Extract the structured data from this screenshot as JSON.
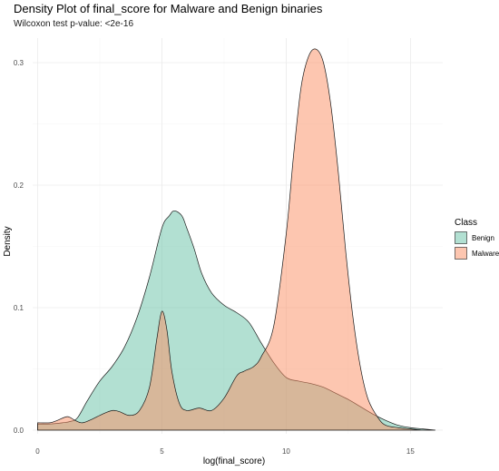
{
  "chart_data": {
    "type": "area",
    "title": "Density Plot of final_score for Malware and Benign binaries",
    "subtitle": "Wilcoxon test p-value: <2e-16",
    "xlabel": "log(final_score)",
    "ylabel": "Density",
    "xlim": [
      -0.2,
      16.3
    ],
    "ylim": [
      -0.003,
      0.32
    ],
    "x_ticks": [
      0,
      5,
      10,
      15
    ],
    "x_tick_labels": [
      "0",
      "5",
      "10",
      "15"
    ],
    "y_ticks": [
      0.0,
      0.1,
      0.2,
      0.3
    ],
    "y_tick_labels": [
      "0.0",
      "0.1",
      "0.2",
      "0.3"
    ],
    "grid": true,
    "legend": {
      "title": "Class",
      "position": "right"
    },
    "series": [
      {
        "name": "Benign",
        "color": "#66C2A5",
        "fill_opacity": 0.5,
        "x": [
          0,
          0.5,
          1.0,
          1.3,
          1.6,
          2.0,
          2.5,
          3.0,
          3.5,
          4.0,
          4.5,
          5.0,
          5.3,
          5.5,
          5.8,
          6.0,
          6.3,
          6.6,
          7.0,
          7.5,
          8.0,
          8.5,
          9.0,
          9.5,
          10.0,
          10.5,
          11.0,
          11.5,
          12.0,
          12.5,
          13.0,
          13.5,
          14.0,
          14.5,
          15.0,
          15.5,
          16.0
        ],
        "y": [
          0.005,
          0.005,
          0.006,
          0.007,
          0.01,
          0.024,
          0.04,
          0.052,
          0.068,
          0.092,
          0.125,
          0.165,
          0.175,
          0.179,
          0.175,
          0.165,
          0.148,
          0.128,
          0.112,
          0.102,
          0.096,
          0.088,
          0.071,
          0.055,
          0.043,
          0.04,
          0.038,
          0.035,
          0.03,
          0.025,
          0.019,
          0.013,
          0.008,
          0.004,
          0.002,
          0.001,
          0.0
        ]
      },
      {
        "name": "Malware",
        "color": "#FC8D62",
        "fill_opacity": 0.5,
        "x": [
          0,
          0.5,
          0.8,
          1.2,
          1.5,
          1.8,
          2.2,
          2.6,
          3.0,
          3.3,
          3.7,
          4.1,
          4.5,
          4.8,
          5.0,
          5.2,
          5.4,
          5.7,
          6.0,
          6.5,
          7.0,
          7.5,
          8.0,
          8.3,
          8.7,
          9.0,
          9.5,
          10.0,
          10.3,
          10.6,
          10.9,
          11.2,
          11.5,
          11.8,
          12.1,
          12.4,
          12.7,
          13.0,
          13.3,
          13.7,
          14.0,
          14.5,
          15.0,
          15.5,
          16.0
        ],
        "y": [
          0.006,
          0.006,
          0.008,
          0.011,
          0.008,
          0.006,
          0.009,
          0.013,
          0.016,
          0.015,
          0.012,
          0.016,
          0.035,
          0.075,
          0.097,
          0.082,
          0.048,
          0.022,
          0.016,
          0.018,
          0.016,
          0.026,
          0.044,
          0.048,
          0.052,
          0.06,
          0.085,
          0.16,
          0.225,
          0.28,
          0.305,
          0.311,
          0.3,
          0.265,
          0.21,
          0.145,
          0.09,
          0.05,
          0.025,
          0.01,
          0.004,
          0.002,
          0.001,
          0.0,
          0.0
        ]
      }
    ]
  }
}
